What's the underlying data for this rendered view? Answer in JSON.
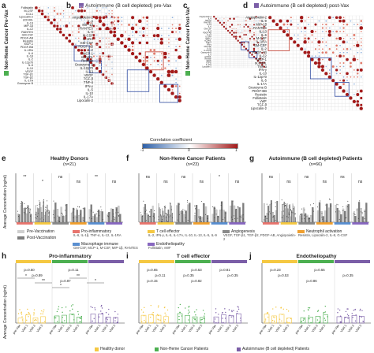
{
  "panels": {
    "a": {
      "label": "a"
    },
    "b": {
      "label": "b",
      "title": "Autoimmune (B cell depleted) pre-Vax"
    },
    "c": {
      "label": "c"
    },
    "d": {
      "label": "d",
      "title": "Autoimmune (B cell depleted) post-Vax"
    },
    "e": {
      "label": "e",
      "title": "Healthy Donors",
      "n": "(n=21)"
    },
    "f": {
      "label": "f",
      "title": "Non-Heme Cancer Patients",
      "n": "(n=23)"
    },
    "g": {
      "label": "g",
      "title": "Autoimmune (B cell depleted) Patients",
      "n": "(n=66)"
    },
    "h": {
      "label": "h",
      "title": "Pro-inflammatory"
    },
    "i": {
      "label": "i",
      "title": "T cell effector"
    },
    "j": {
      "label": "j",
      "title": "Endotheliopathy"
    }
  },
  "side_labels": {
    "a": "Non-Heme Cancer Pre-Vax",
    "c": "Non-Heme Cancer Post-Vax"
  },
  "row_labels_a": [
    "Follistatin",
    "M-CSF",
    "CCL1",
    "Lipocalin-2",
    "sCD40L",
    "IL-13",
    "MIP-1β",
    "IL-12",
    "RANTES",
    "GM-CSF",
    "PDGF-AB",
    "Resistin",
    "MCP-1",
    "PDGF-BB",
    "IL-1RA",
    "IL-6",
    "IL-1β",
    "IL-2",
    "IL-12p70",
    "IL-5",
    "IL-10",
    "VEGF",
    "TGF-β1",
    "TGF-β2",
    "IL-17A",
    "Granzyme B"
  ],
  "row_labels_b": [
    "Angiopoietin-2",
    "IL-9",
    "MIP-1β",
    "RANTES",
    "IL-6",
    "M-CSF",
    "IL-1RA",
    "GM-CSF",
    "PDGF-AB",
    "IL-2",
    "MCP-1",
    "sCD40L",
    "Resistin",
    "Granzyme B",
    "IL-12p70",
    "IL-13",
    "VEGF",
    "TGF-β",
    "TNF-α",
    "IFN-γ",
    "IL-5",
    "IL-10",
    "IL-17A",
    "Lipocalin-2"
  ],
  "row_labels_c": [
    "Angiopoietin-2",
    "IL-9",
    "MIP-1β",
    "RANTES",
    "IL-13",
    "IL-6",
    "GM-CSF",
    "IL-2",
    "PDGF-AB",
    "IL-12",
    "IL-1RA",
    "MCP-1",
    "sCD40L",
    "TNF-α",
    "IFN-γ",
    "GM-CSF",
    "IL-10",
    "IL-12p70",
    "Granzyme B",
    "IL-5",
    "sCD40L",
    "Resistin",
    "VEGF",
    "TGF-β",
    "IL-17A",
    "Lipocalin-2"
  ],
  "row_labels_d": [
    "Angiopoietin-2",
    "IL-9",
    "MIP-1β",
    "RANTES",
    "IL-13",
    "IL-6",
    "M-CSF",
    "IL-1RA",
    "GM-CSF",
    "IL-2",
    "PDGF-AB",
    "IL-12",
    "MCP-1",
    "sCD40L",
    "TNF-α",
    "IFN-γ",
    "IL-10",
    "IL-12p70",
    "IL-5",
    "IL-17A",
    "Granzyme B",
    "PDGF-BB",
    "Resistin",
    "Follistatin",
    "vWF",
    "TGF-β",
    "Lipocalin-2"
  ],
  "colorbar": {
    "label": "Correlation coefficient",
    "min": "-1",
    "mid": "0",
    "max": "1"
  },
  "axes": {
    "ylabel_efg": "Average Concentration (ng/ml)",
    "ylabel_hij": "Average Concentration (ng/ml)"
  },
  "legend_vax": {
    "pre": "Pre-Vaccination",
    "post": "Post-Vaccination"
  },
  "legend_groups": [
    {
      "name": "Pro-inflammatory",
      "color": "#e8756e",
      "members": "IL-6, IL-1β, TNF-α, IL-12, IL-1RA"
    },
    {
      "name": "T cell effector",
      "color": "#f5c842",
      "members": "IL-2, IFN-γ, IL-5, IL-17A, IL-10, IL-13, IL-5, IL-9"
    },
    {
      "name": "Angiogenesis",
      "color": "#8a8a8a",
      "members": "VEGF, TGF-β1, TGF-β2, PDGF-AB, Angiopoietin-2"
    },
    {
      "name": "Neutrophil activation",
      "color": "#f0a030",
      "members": "Resistin, Lipocalin-2, IL-8, G-CSF"
    },
    {
      "name": "Macrophage immune",
      "color": "#5a8fd0",
      "members": "GM-CSF, MCP-1, M-CSF, MIP-1β, RANTES"
    },
    {
      "name": "Endotheliopathy",
      "color": "#8868c0",
      "members": "Follistatin, vWF"
    }
  ],
  "sig_e": [
    "**",
    "*",
    "ns",
    "ns",
    "**",
    "ns"
  ],
  "sig_f": [
    "ns",
    "ns",
    "ns",
    "ns",
    "*",
    "ns"
  ],
  "sig_g": [
    "ns",
    "ns",
    "ns",
    "ns",
    "ns",
    "ns"
  ],
  "pvals_h": [
    "p=0.50",
    "p=0.89",
    "p=0.87",
    "p=0.11"
  ],
  "pvals_i": [
    "p=0.65",
    "p=0.11",
    "p=0.15",
    "p=0.53",
    "p=0.35",
    "p=0.82",
    "p=0.81",
    "p=0.35"
  ],
  "pvals_j": [
    "p=0.23",
    "p=0.53",
    "p=0.86",
    "p=0.55",
    "p=0.35"
  ],
  "sig_h": [
    "*",
    "**",
    "*",
    "**",
    "*"
  ],
  "xticks_hij": [
    "pre-Vax",
    "Visit 1",
    "Visit 2",
    "Visit 3"
  ],
  "bottom_legend": [
    {
      "label": "Healthy donor",
      "color": "#f5c842"
    },
    {
      "label": "Non-Heme Cancer Patients",
      "color": "#4caf50"
    },
    {
      "label": "Autoimmune (B cell depleted) Patients",
      "color": "#7b5ea7"
    }
  ],
  "colors": {
    "pos": "#a31a1a",
    "neg": "#2c5fa8",
    "box": "#2e4aa0",
    "pre": "#cfcfcf",
    "post": "#7d7d7d"
  }
}
